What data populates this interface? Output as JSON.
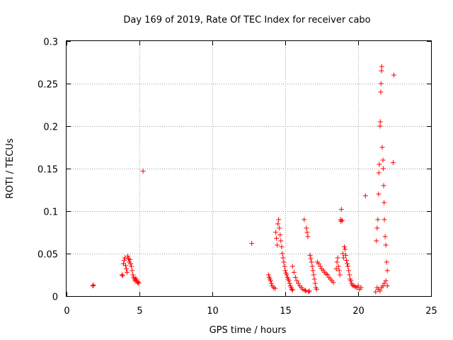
{
  "chart_data": {
    "type": "scatter",
    "title": "Day 169 of 2019, Rate Of TEC Index for receiver cabo",
    "xlabel": "GPS time / hours",
    "ylabel": "ROTI / TECUs",
    "xlim": [
      0,
      25
    ],
    "ylim": [
      0,
      0.3
    ],
    "x_ticks": [
      "0",
      "5",
      "10",
      "15",
      "20",
      "25"
    ],
    "y_ticks": [
      "0",
      "0.05",
      "0.1",
      "0.15",
      "0.2",
      "0.25",
      "0.3"
    ],
    "x_tick_values": [
      0,
      5,
      10,
      15,
      20,
      25
    ],
    "y_tick_values": [
      0,
      0.05,
      0.1,
      0.15,
      0.2,
      0.25,
      0.3
    ],
    "grid": true,
    "marker": "+",
    "color": "#ff0000",
    "series": [
      {
        "points": [
          [
            1.8,
            0.012
          ],
          [
            1.85,
            0.013
          ],
          [
            3.8,
            0.025
          ],
          [
            3.85,
            0.024
          ],
          [
            3.9,
            0.038
          ],
          [
            3.95,
            0.042
          ],
          [
            4.0,
            0.045
          ],
          [
            4.05,
            0.036
          ],
          [
            4.1,
            0.032
          ],
          [
            4.15,
            0.028
          ],
          [
            4.2,
            0.047
          ],
          [
            4.25,
            0.044
          ],
          [
            4.3,
            0.04
          ],
          [
            4.35,
            0.043
          ],
          [
            4.4,
            0.038
          ],
          [
            4.45,
            0.035
          ],
          [
            4.5,
            0.03
          ],
          [
            4.55,
            0.025
          ],
          [
            4.6,
            0.022
          ],
          [
            4.65,
            0.02
          ],
          [
            4.7,
            0.018
          ],
          [
            4.75,
            0.021
          ],
          [
            4.8,
            0.019
          ],
          [
            4.85,
            0.017
          ],
          [
            4.9,
            0.015
          ],
          [
            4.95,
            0.016
          ],
          [
            5.25,
            0.147
          ],
          [
            12.7,
            0.062
          ],
          [
            13.85,
            0.025
          ],
          [
            13.9,
            0.022
          ],
          [
            13.95,
            0.02
          ],
          [
            14.0,
            0.018
          ],
          [
            14.05,
            0.015
          ],
          [
            14.1,
            0.012
          ],
          [
            14.2,
            0.01
          ],
          [
            14.3,
            0.009
          ],
          [
            14.35,
            0.075
          ],
          [
            14.4,
            0.068
          ],
          [
            14.45,
            0.06
          ],
          [
            14.5,
            0.085
          ],
          [
            14.55,
            0.09
          ],
          [
            14.6,
            0.08
          ],
          [
            14.65,
            0.072
          ],
          [
            14.7,
            0.065
          ],
          [
            14.75,
            0.058
          ],
          [
            14.8,
            0.05
          ],
          [
            14.85,
            0.045
          ],
          [
            14.9,
            0.04
          ],
          [
            14.95,
            0.035
          ],
          [
            15.0,
            0.03
          ],
          [
            15.05,
            0.027
          ],
          [
            15.1,
            0.025
          ],
          [
            15.15,
            0.022
          ],
          [
            15.2,
            0.02
          ],
          [
            15.25,
            0.018
          ],
          [
            15.3,
            0.015
          ],
          [
            15.35,
            0.012
          ],
          [
            15.4,
            0.01
          ],
          [
            15.45,
            0.008
          ],
          [
            15.5,
            0.007
          ],
          [
            15.5,
            0.035
          ],
          [
            15.6,
            0.028
          ],
          [
            15.7,
            0.022
          ],
          [
            15.8,
            0.018
          ],
          [
            15.9,
            0.015
          ],
          [
            16.0,
            0.012
          ],
          [
            16.1,
            0.01
          ],
          [
            16.2,
            0.008
          ],
          [
            16.3,
            0.09
          ],
          [
            16.35,
            0.007
          ],
          [
            16.4,
            0.006
          ],
          [
            16.45,
            0.08
          ],
          [
            16.5,
            0.075
          ],
          [
            16.55,
            0.07
          ],
          [
            16.6,
            0.005
          ],
          [
            16.65,
            0.006
          ],
          [
            16.7,
            0.048
          ],
          [
            16.75,
            0.044
          ],
          [
            16.8,
            0.04
          ],
          [
            16.85,
            0.035
          ],
          [
            16.9,
            0.03
          ],
          [
            16.95,
            0.025
          ],
          [
            17.0,
            0.02
          ],
          [
            17.05,
            0.015
          ],
          [
            17.1,
            0.01
          ],
          [
            17.15,
            0.008
          ],
          [
            17.2,
            0.04
          ],
          [
            17.3,
            0.038
          ],
          [
            17.4,
            0.035
          ],
          [
            17.5,
            0.032
          ],
          [
            17.6,
            0.03
          ],
          [
            17.7,
            0.028
          ],
          [
            17.8,
            0.026
          ],
          [
            17.9,
            0.025
          ],
          [
            18.0,
            0.022
          ],
          [
            18.1,
            0.02
          ],
          [
            18.2,
            0.018
          ],
          [
            18.3,
            0.016
          ],
          [
            18.5,
            0.032
          ],
          [
            18.55,
            0.04
          ],
          [
            18.6,
            0.045
          ],
          [
            18.65,
            0.035
          ],
          [
            18.7,
            0.03
          ],
          [
            18.75,
            0.025
          ],
          [
            18.8,
            0.09
          ],
          [
            18.82,
            0.088
          ],
          [
            18.85,
            0.102
          ],
          [
            18.9,
            0.089
          ],
          [
            18.95,
            0.05
          ],
          [
            19.0,
            0.045
          ],
          [
            19.05,
            0.058
          ],
          [
            19.1,
            0.055
          ],
          [
            19.15,
            0.048
          ],
          [
            19.2,
            0.042
          ],
          [
            19.25,
            0.038
          ],
          [
            19.3,
            0.035
          ],
          [
            19.35,
            0.03
          ],
          [
            19.4,
            0.025
          ],
          [
            19.45,
            0.02
          ],
          [
            19.5,
            0.018
          ],
          [
            19.55,
            0.015
          ],
          [
            19.6,
            0.013
          ],
          [
            19.7,
            0.012
          ],
          [
            19.8,
            0.011
          ],
          [
            19.9,
            0.01
          ],
          [
            20.0,
            0.012
          ],
          [
            20.1,
            0.008
          ],
          [
            20.2,
            0.01
          ],
          [
            20.5,
            0.118
          ],
          [
            21.2,
            0.005
          ],
          [
            21.25,
            0.065
          ],
          [
            21.3,
            0.08
          ],
          [
            21.35,
            0.09
          ],
          [
            21.4,
            0.12
          ],
          [
            21.42,
            0.145
          ],
          [
            21.45,
            0.155
          ],
          [
            21.5,
            0.2
          ],
          [
            21.52,
            0.205
          ],
          [
            21.55,
            0.24
          ],
          [
            21.57,
            0.25
          ],
          [
            21.6,
            0.265
          ],
          [
            21.62,
            0.27
          ],
          [
            21.65,
            0.175
          ],
          [
            21.7,
            0.16
          ],
          [
            21.72,
            0.15
          ],
          [
            21.75,
            0.13
          ],
          [
            21.78,
            0.11
          ],
          [
            21.8,
            0.09
          ],
          [
            21.85,
            0.07
          ],
          [
            21.9,
            0.06
          ],
          [
            21.95,
            0.04
          ],
          [
            22.0,
            0.03
          ],
          [
            21.3,
            0.01
          ],
          [
            21.4,
            0.008
          ],
          [
            21.5,
            0.006
          ],
          [
            21.6,
            0.01
          ],
          [
            21.7,
            0.012
          ],
          [
            21.8,
            0.015
          ],
          [
            21.9,
            0.018
          ],
          [
            22.0,
            0.012
          ],
          [
            22.45,
            0.26
          ],
          [
            22.4,
            0.157
          ]
        ]
      }
    ]
  }
}
